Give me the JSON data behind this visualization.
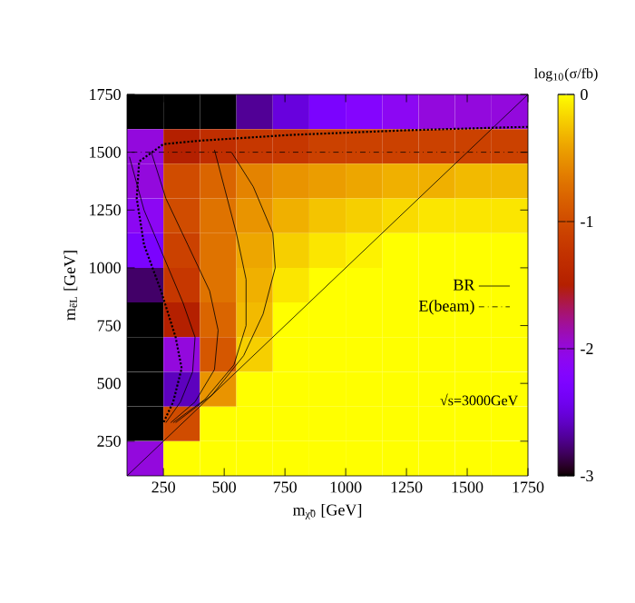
{
  "chart_data": {
    "type": "heatmap",
    "xlabel": "m$_{χ̃0}$ [GeV]",
    "ylabel": "m$_{ẽL}$ [GeV]",
    "clabel": "log$_{10}$(σ/fb)",
    "x": [
      175,
      325,
      475,
      625,
      775,
      925,
      1075,
      1225,
      1375,
      1525,
      1675
    ],
    "y": [
      1675,
      1525,
      1375,
      1225,
      1075,
      925,
      775,
      625,
      475,
      325,
      175
    ],
    "cells": [
      [
        -3,
        -3,
        -3,
        -2.7,
        -2.5,
        -2.3,
        -2.2,
        -2.1,
        -2.0,
        -2.0,
        -2.0
      ],
      [
        -2.0,
        -1.5,
        -1.3,
        -1.2,
        -1.2,
        -1.1,
        -1.1,
        -1.1,
        -1.1,
        -1.1,
        -1.1
      ],
      [
        -2.0,
        -1.0,
        -0.8,
        -0.6,
        -0.5,
        -0.45,
        -0.4,
        -0.35,
        -0.35,
        -0.3,
        -0.3
      ],
      [
        -2.1,
        -1.0,
        -0.7,
        -0.5,
        -0.35,
        -0.25,
        -0.2,
        -0.15,
        -0.1,
        -0.1,
        -0.1
      ],
      [
        -2.3,
        -1.1,
        -0.7,
        -0.4,
        -0.2,
        -0.1,
        -0.05,
        0,
        0,
        0,
        0
      ],
      [
        -2.8,
        -1.2,
        -0.7,
        -0.35,
        -0.1,
        0,
        0,
        0,
        0,
        0,
        0
      ],
      [
        -3,
        -1.5,
        -0.8,
        -0.3,
        0,
        0,
        0,
        0,
        0,
        0,
        0
      ],
      [
        -3,
        -2.0,
        -0.9,
        -0.2,
        0,
        0,
        0,
        0,
        0,
        0,
        0
      ],
      [
        -3,
        -2.6,
        -0.5,
        0,
        0,
        0,
        0,
        0,
        0,
        0,
        0
      ],
      [
        -3,
        -1.0,
        0,
        0,
        0,
        0,
        0,
        0,
        0,
        0,
        0
      ],
      [
        -2.0,
        0,
        0,
        0,
        0,
        0,
        0,
        0,
        0,
        0,
        0
      ]
    ],
    "clim": [
      -3,
      0
    ],
    "cticks": [
      -3,
      -2,
      -1,
      0
    ],
    "xlim": [
      100,
      1750
    ],
    "ylim": [
      100,
      1750
    ],
    "xticks": [
      250,
      500,
      750,
      1000,
      1250,
      1500,
      1750
    ],
    "yticks": [
      250,
      500,
      750,
      1000,
      1250,
      1500,
      1750
    ],
    "series": [
      {
        "type": "line",
        "name": "BR",
        "color": "#000000",
        "line_style": "solid",
        "x": [
          110,
          170,
          250,
          330,
          380,
          370,
          320,
          260
        ],
        "values": [
          1480,
          1250,
          1050,
          850,
          700,
          550,
          420,
          330
        ]
      },
      {
        "type": "line",
        "color": "#000000",
        "line_style": "solid",
        "x": [
          200,
          260,
          350,
          440,
          475,
          460,
          380,
          280
        ],
        "values": [
          1500,
          1300,
          1100,
          900,
          730,
          560,
          420,
          330
        ]
      },
      {
        "type": "line",
        "color": "#000000",
        "line_style": "solid",
        "x": [
          460,
          500,
          550,
          590,
          590,
          540,
          420,
          290
        ],
        "values": [
          1510,
          1350,
          1150,
          950,
          750,
          580,
          430,
          330
        ]
      },
      {
        "type": "line",
        "color": "#000000",
        "line_style": "solid",
        "x": [
          530,
          620,
          700,
          710,
          660,
          580,
          450,
          300
        ],
        "values": [
          1500,
          1350,
          1150,
          1000,
          800,
          620,
          450,
          330
        ]
      },
      {
        "type": "line",
        "name": "E(beam)",
        "color": "#000000",
        "line_style": "dashed",
        "x": [
          120,
          1750
        ],
        "values": [
          1500,
          1500
        ]
      },
      {
        "type": "line",
        "color": "#000000",
        "line_style": "dotted",
        "x": [
          1750,
          1250,
          775,
          400,
          250,
          150,
          140,
          170,
          240,
          300,
          325,
          290,
          250
        ],
        "values": [
          1610,
          1595,
          1575,
          1550,
          1535,
          1460,
          1300,
          1100,
          900,
          700,
          565,
          420,
          330
        ]
      },
      {
        "type": "line",
        "color": "#000000",
        "line_style": "solid",
        "x": [
          100,
          1750
        ],
        "values": [
          100,
          1750
        ]
      }
    ],
    "legend": "right",
    "annotations": [
      "√s=3000GeV"
    ]
  }
}
